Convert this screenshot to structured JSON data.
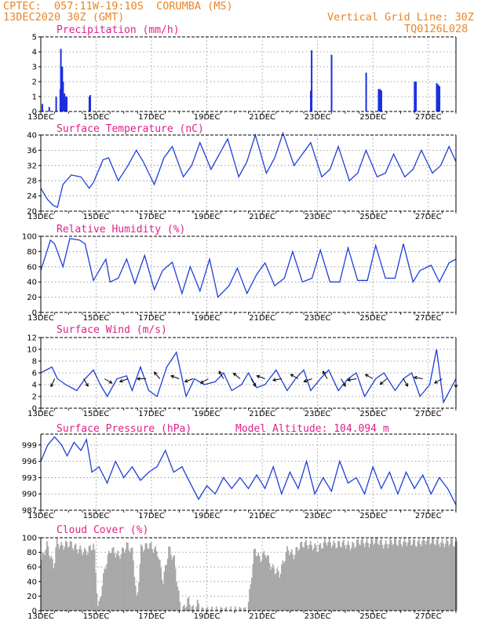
{
  "header": {
    "source": "CPTEC:",
    "location_coords": "057:11W-19:10S",
    "location_name": "CORUMBA (MS)",
    "init_time": "13DEC2020 30Z (GMT)",
    "grid_note": "Vertical Grid Line: 30Z",
    "model_code": "TQ0126L028"
  },
  "date_labels": [
    "13DEC",
    "15DEC",
    "17DEC",
    "19DEC",
    "21DEC",
    "23DEC",
    "25DEC",
    "27DEC"
  ],
  "colors": {
    "line": "#1f3fd8",
    "bar": "#1a2fe0",
    "cloud": "#a8a8a8",
    "title": "#e0208a",
    "header": "#e8862a"
  },
  "chart_data": [
    {
      "id": "precipitation",
      "type": "bar",
      "title": "Precipitation (mm/h)",
      "ylim": [
        0,
        5
      ],
      "yticks": [
        0,
        1,
        2,
        3,
        4,
        5
      ],
      "days_range": [
        0,
        15
      ],
      "x": [
        0.05,
        0.3,
        0.55,
        0.7,
        0.72,
        0.75,
        0.77,
        0.8,
        0.82,
        0.85,
        0.87,
        0.9,
        0.93,
        1.75,
        1.78,
        9.75,
        9.78,
        10.5,
        11.75,
        12.2,
        12.25,
        12.3,
        13.5,
        13.55,
        14.3,
        14.35,
        14.4
      ],
      "values": [
        0.5,
        0.3,
        1.0,
        1.5,
        4.2,
        2.6,
        3.0,
        2.0,
        1.0,
        1.2,
        1.0,
        0.8,
        1.0,
        1.0,
        1.1,
        1.4,
        4.1,
        3.8,
        2.6,
        1.5,
        1.5,
        1.4,
        2.0,
        2.0,
        1.9,
        1.8,
        1.7
      ]
    },
    {
      "id": "temperature",
      "type": "line",
      "title": "Surface Temperature (nC)",
      "ylim": [
        20,
        40
      ],
      "yticks": [
        20,
        24,
        28,
        32,
        36,
        40
      ],
      "days_range": [
        0,
        15
      ],
      "x": [
        0,
        0.25,
        0.45,
        0.6,
        0.8,
        1.1,
        1.45,
        1.75,
        1.9,
        2.25,
        2.45,
        2.8,
        3.15,
        3.45,
        3.7,
        4.1,
        4.45,
        4.75,
        5.15,
        5.45,
        5.75,
        6.15,
        6.45,
        6.75,
        7.15,
        7.45,
        7.75,
        8.15,
        8.45,
        8.75,
        9.15,
        9.45,
        9.75,
        10.15,
        10.45,
        10.75,
        11.15,
        11.45,
        11.75,
        12.15,
        12.45,
        12.75,
        13.15,
        13.45,
        13.75,
        14.15,
        14.45,
        14.75,
        15
      ],
      "values": [
        26,
        23,
        21.5,
        21,
        27,
        29.5,
        29,
        26,
        27.5,
        33.5,
        34,
        28,
        32,
        36,
        33,
        27,
        34,
        37,
        29,
        32,
        38,
        31,
        35,
        39,
        29,
        33,
        40,
        30,
        34,
        40.5,
        32,
        35,
        38,
        29,
        31,
        37,
        28,
        30,
        36,
        29,
        30,
        35,
        29,
        31,
        36,
        30,
        32,
        37,
        33
      ]
    },
    {
      "id": "humidity",
      "type": "line",
      "title": "Relative Humidity (%)",
      "ylim": [
        0,
        100
      ],
      "yticks": [
        0,
        20,
        40,
        60,
        80,
        100
      ],
      "days_range": [
        0,
        15
      ],
      "x": [
        0,
        0.35,
        0.5,
        0.8,
        1.05,
        1.4,
        1.6,
        1.9,
        2.35,
        2.5,
        2.8,
        3.1,
        3.4,
        3.75,
        4.1,
        4.4,
        4.75,
        5.1,
        5.4,
        5.75,
        6.1,
        6.4,
        6.8,
        7.1,
        7.45,
        7.8,
        8.1,
        8.45,
        8.8,
        9.1,
        9.45,
        9.8,
        10.1,
        10.45,
        10.8,
        11.1,
        11.45,
        11.8,
        12.1,
        12.45,
        12.8,
        13.1,
        13.45,
        13.7,
        14.1,
        14.4,
        14.75,
        15
      ],
      "values": [
        55,
        95,
        90,
        60,
        97,
        95,
        90,
        42,
        70,
        40,
        45,
        70,
        38,
        75,
        30,
        55,
        66,
        25,
        60,
        28,
        70,
        20,
        35,
        58,
        25,
        50,
        65,
        35,
        45,
        80,
        40,
        45,
        82,
        40,
        40,
        85,
        42,
        42,
        88,
        45,
        45,
        90,
        40,
        55,
        62,
        40,
        65,
        70
      ]
    },
    {
      "id": "wind",
      "type": "line",
      "title": "Surface Wind (m/s)",
      "ylim": [
        0,
        12
      ],
      "yticks": [
        0,
        2,
        4,
        6,
        8,
        10,
        12
      ],
      "days_range": [
        0,
        15
      ],
      "x": [
        0,
        0.4,
        0.6,
        0.9,
        1.3,
        1.6,
        1.9,
        2.15,
        2.4,
        2.75,
        3.1,
        3.3,
        3.6,
        3.9,
        4.2,
        4.55,
        4.9,
        5.25,
        5.55,
        5.9,
        6.3,
        6.6,
        6.9,
        7.25,
        7.5,
        7.8,
        8.1,
        8.5,
        8.9,
        9.2,
        9.5,
        9.75,
        10.1,
        10.4,
        10.75,
        11.1,
        11.4,
        11.7,
        12.1,
        12.4,
        12.8,
        13.1,
        13.4,
        13.7,
        14.05,
        14.3,
        14.55,
        15
      ],
      "values": [
        6,
        7,
        5,
        4,
        3,
        5,
        6.5,
        4,
        2,
        5,
        5.5,
        3,
        7,
        3,
        2,
        7,
        9.5,
        2,
        5,
        4,
        4.5,
        6,
        3,
        4,
        6,
        3.5,
        4,
        6.5,
        3,
        5,
        6.5,
        3,
        5,
        6.5,
        3,
        5,
        6,
        2,
        5,
        6,
        3,
        5,
        6,
        2,
        4,
        10,
        1,
        5
      ],
      "arrow_days": [
        0.5,
        1.55,
        2.3,
        3.15,
        3.8,
        4.3,
        5.0,
        5.5,
        6.05,
        6.6,
        7.2,
        7.6,
        8.1,
        8.7,
        9.3,
        9.8,
        10.35,
        10.85,
        11.4,
        12.0,
        12.5,
        13.1,
        13.8,
        14.5,
        15.0
      ],
      "arrow_dirs_deg": [
        245,
        300,
        330,
        200,
        180,
        130,
        160,
        200,
        210,
        120,
        140,
        300,
        160,
        190,
        150,
        200,
        120,
        300,
        190,
        150,
        220,
        300,
        170,
        210,
        270
      ]
    },
    {
      "id": "pressure",
      "type": "line",
      "title": "Surface Pressure (hPa)",
      "subtitle": "Model Altitude: 104.094 m",
      "ylim": [
        987,
        1001
      ],
      "yticks": [
        987,
        990,
        993,
        996,
        999
      ],
      "days_range": [
        0,
        15
      ],
      "x": [
        0,
        0.25,
        0.5,
        0.75,
        0.95,
        1.2,
        1.45,
        1.65,
        1.85,
        2.1,
        2.4,
        2.7,
        3.0,
        3.3,
        3.6,
        3.9,
        4.2,
        4.5,
        4.8,
        5.1,
        5.4,
        5.7,
        6.0,
        6.3,
        6.6,
        6.9,
        7.2,
        7.5,
        7.8,
        8.1,
        8.4,
        8.7,
        9.0,
        9.3,
        9.6,
        9.9,
        10.2,
        10.5,
        10.8,
        11.1,
        11.4,
        11.7,
        12.0,
        12.3,
        12.6,
        12.9,
        13.2,
        13.5,
        13.8,
        14.1,
        14.4,
        14.7,
        15
      ],
      "values": [
        996,
        999,
        1000.5,
        999,
        997,
        999.5,
        998,
        1000,
        994,
        995,
        992,
        996,
        993,
        995,
        992.5,
        994,
        995,
        998,
        994,
        995,
        992,
        989,
        991.5,
        990,
        993,
        991,
        993,
        991,
        993.5,
        991,
        995,
        990,
        994,
        991,
        996,
        990,
        993,
        990.5,
        996,
        992,
        993,
        990,
        995,
        991,
        994,
        990,
        994,
        991,
        993.5,
        990,
        993,
        991,
        988
      ]
    },
    {
      "id": "cloud",
      "type": "area",
      "title": "Cloud Cover (%)",
      "ylim": [
        0,
        100
      ],
      "yticks": [
        0,
        20,
        40,
        60,
        80,
        100
      ],
      "days_range": [
        0,
        15
      ],
      "x": [
        0,
        0.2,
        0.45,
        0.55,
        0.7,
        1.0,
        1.3,
        1.6,
        1.9,
        2.05,
        2.3,
        2.5,
        2.8,
        3.1,
        3.3,
        3.45,
        3.6,
        3.9,
        4.2,
        4.4,
        4.6,
        4.8,
        5.0,
        5.1,
        5.3,
        5.5,
        5.65,
        5.8,
        6.0,
        6.2,
        6.5,
        6.8,
        7.0,
        7.2,
        7.45,
        7.7,
        7.9,
        8.1,
        8.3,
        8.6,
        8.9,
        9.1,
        9.3,
        9.5,
        9.7,
        10.0,
        10.3,
        10.6,
        10.9,
        11.2,
        11.5,
        11.8,
        12.1,
        12.4,
        12.7,
        13.0,
        13.3,
        13.6,
        13.9,
        14.2,
        14.5,
        14.8,
        15
      ],
      "values": [
        70,
        90,
        60,
        95,
        88,
        92,
        85,
        80,
        90,
        0,
        60,
        85,
        75,
        90,
        80,
        10,
        85,
        90,
        80,
        40,
        85,
        70,
        10,
        0,
        15,
        0,
        10,
        0,
        0,
        0,
        0,
        0,
        0,
        0,
        0,
        85,
        70,
        80,
        60,
        50,
        85,
        75,
        88,
        92,
        90,
        85,
        95,
        90,
        92,
        88,
        95,
        92,
        97,
        90,
        95,
        93,
        95,
        92,
        97,
        95,
        92,
        95,
        90
      ]
    }
  ]
}
